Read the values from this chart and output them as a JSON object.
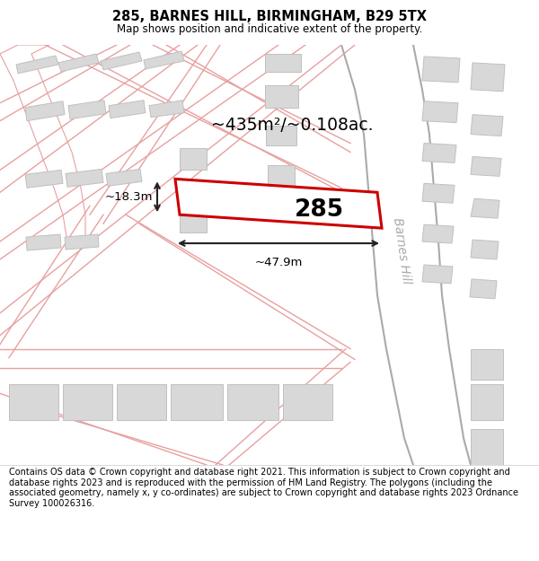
{
  "title": "285, BARNES HILL, BIRMINGHAM, B29 5TX",
  "subtitle": "Map shows position and indicative extent of the property.",
  "footer": "Contains OS data © Crown copyright and database right 2021. This information is subject to Crown copyright and database rights 2023 and is reproduced with the permission of HM Land Registry. The polygons (including the associated geometry, namely x, y co-ordinates) are subject to Crown copyright and database rights 2023 Ordnance Survey 100026316.",
  "area_label": "~435m²/~0.108ac.",
  "property_number": "285",
  "width_label": "~47.9m",
  "height_label": "~18.3m",
  "map_bg": "#f5f5f5",
  "road_fill": "#ffffff",
  "road_line_color": "#e8a0a0",
  "building_color": "#d8d8d8",
  "building_edge_color": "#c0c0c0",
  "property_fill": "#ffffff",
  "property_edge": "#cc0000",
  "road_label": "Barnes Hill",
  "road_label_color": "#aaaaaa",
  "dim_color": "#222222",
  "figsize": [
    6.0,
    6.25
  ],
  "dpi": 100
}
